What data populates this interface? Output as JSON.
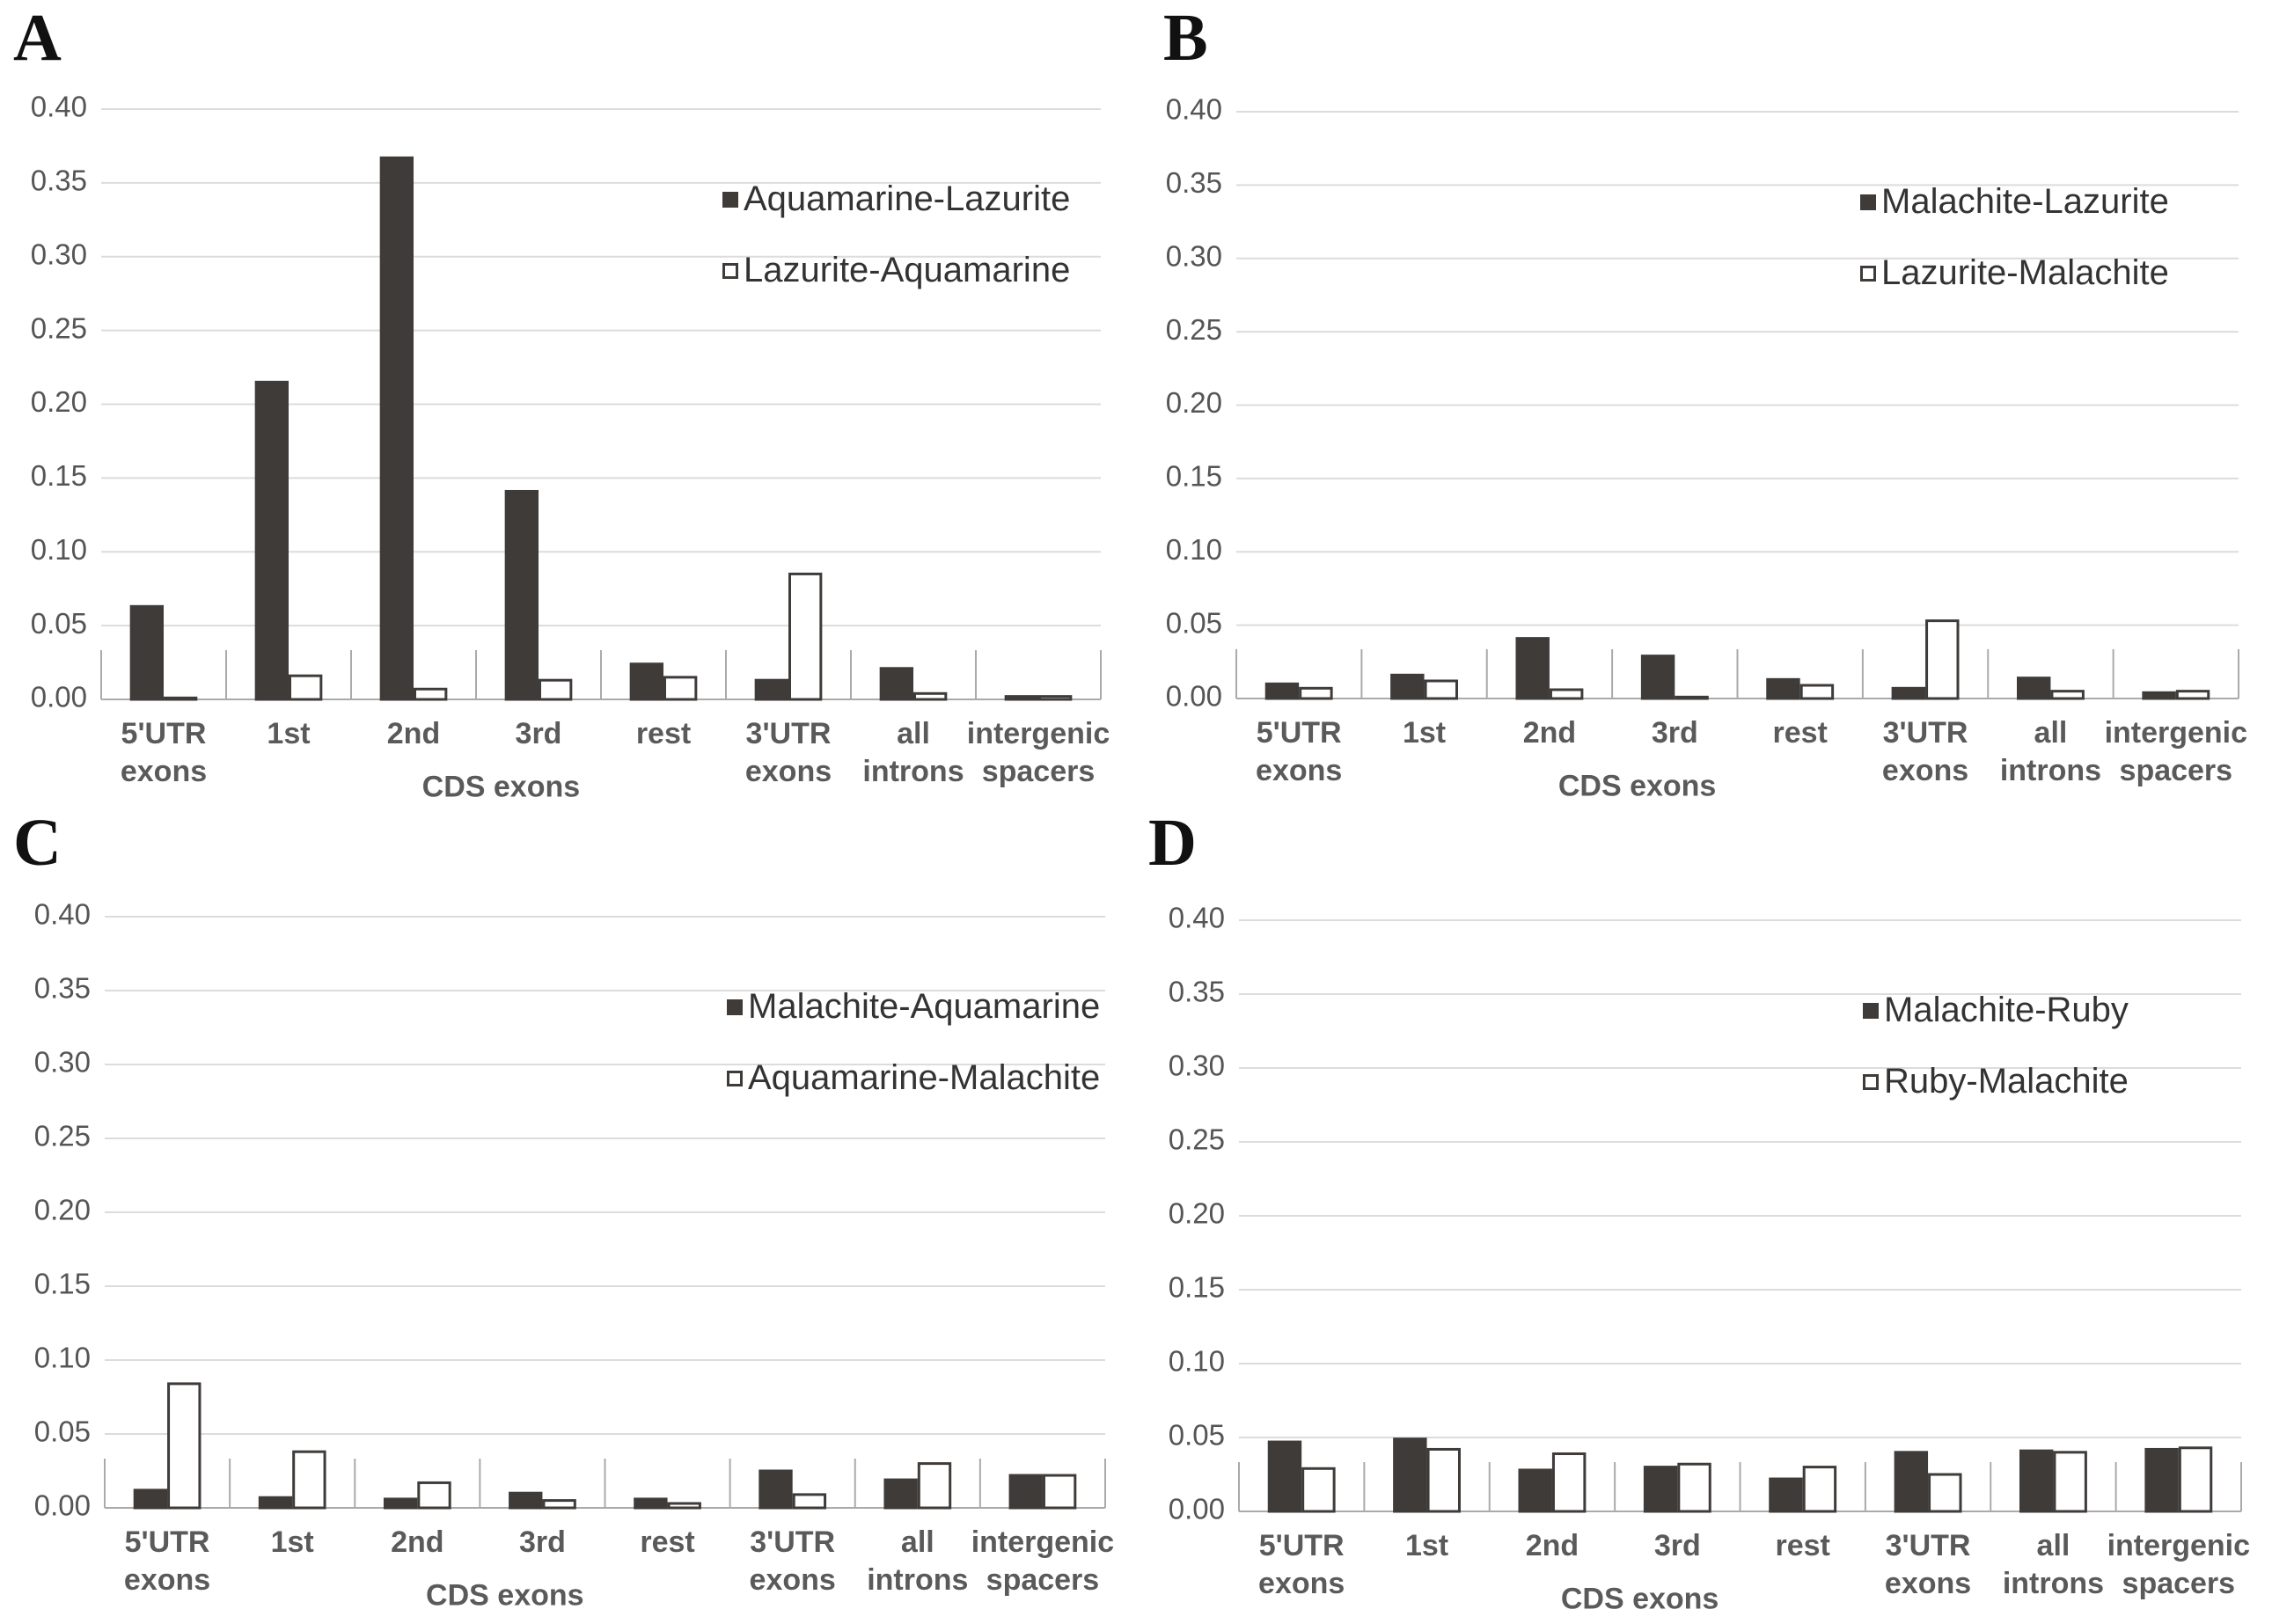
{
  "chart_data": [
    {
      "type": "bar",
      "panel": "A",
      "category_group": "CDS exons",
      "categories": [
        "5'UTR exons",
        "1st",
        "2nd",
        "3rd",
        "rest",
        "3'UTR exons",
        "all introns",
        "intergenic spacers"
      ],
      "series": [
        {
          "name": "Aquamarine-Lazurite",
          "color": "#3f3b39",
          "values": [
            0.063,
            0.215,
            0.367,
            0.141,
            0.024,
            0.013,
            0.021,
            0.002
          ]
        },
        {
          "name": "Lazurite-Aquamarine",
          "color": "#ffffff",
          "values": [
            0.001,
            0.016,
            0.007,
            0.013,
            0.015,
            0.085,
            0.004,
            0.002
          ]
        }
      ],
      "ylim": [
        0,
        0.4
      ],
      "yticks": [
        {
          "value": 0,
          "label": "0.00"
        },
        {
          "value": 0.05,
          "label": "0.05"
        },
        {
          "value": 0.1,
          "label": "0.10"
        },
        {
          "value": 0.15,
          "label": "0.15"
        },
        {
          "value": 0.2,
          "label": "0.20"
        },
        {
          "value": 0.25,
          "label": "0.25"
        },
        {
          "value": 0.3,
          "label": "0.30"
        },
        {
          "value": 0.35,
          "label": "0.35"
        },
        {
          "value": 0.4,
          "label": "0.40"
        }
      ],
      "grid": true,
      "legend": "upper right"
    },
    {
      "type": "bar",
      "panel": "B",
      "category_group": "CDS exons",
      "categories": [
        "5'UTR exons",
        "1st",
        "2nd",
        "3rd",
        "rest",
        "3'UTR exons",
        "all introns",
        "intergenic spacers"
      ],
      "series": [
        {
          "name": "Malachite-Lazurite",
          "color": "#3f3b39",
          "values": [
            0.01,
            0.016,
            0.041,
            0.029,
            0.013,
            0.007,
            0.014,
            0.004
          ]
        },
        {
          "name": "Lazurite-Malachite",
          "color": "#ffffff",
          "values": [
            0.007,
            0.012,
            0.006,
            0.001,
            0.009,
            0.053,
            0.005,
            0.005
          ]
        }
      ],
      "ylim": [
        0,
        0.4
      ],
      "yticks": [
        {
          "value": 0,
          "label": "0.00"
        },
        {
          "value": 0.05,
          "label": "0.05"
        },
        {
          "value": 0.1,
          "label": "0.10"
        },
        {
          "value": 0.15,
          "label": "0.15"
        },
        {
          "value": 0.2,
          "label": "0.20"
        },
        {
          "value": 0.25,
          "label": "0.25"
        },
        {
          "value": 0.3,
          "label": "0.30"
        },
        {
          "value": 0.35,
          "label": "0.35"
        },
        {
          "value": 0.4,
          "label": "0.40"
        }
      ],
      "grid": true,
      "legend": "upper right"
    },
    {
      "type": "bar",
      "panel": "C",
      "category_group": "CDS exons",
      "categories": [
        "5'UTR exons",
        "1st",
        "2nd",
        "3rd",
        "rest",
        "3'UTR exons",
        "all introns",
        "intergenic spacers"
      ],
      "series": [
        {
          "name": "Malachite-Aquamarine",
          "color": "#3f3b39",
          "values": [
            0.012,
            0.007,
            0.006,
            0.01,
            0.006,
            0.025,
            0.019,
            0.022
          ]
        },
        {
          "name": "Aquamarine-Malachite",
          "color": "#ffffff",
          "values": [
            0.084,
            0.038,
            0.017,
            0.005,
            0.003,
            0.009,
            0.03,
            0.022
          ]
        }
      ],
      "ylim": [
        0,
        0.4
      ],
      "yticks": [
        {
          "value": 0,
          "label": "0.00"
        },
        {
          "value": 0.05,
          "label": "0.05"
        },
        {
          "value": 0.1,
          "label": "0.10"
        },
        {
          "value": 0.15,
          "label": "0.15"
        },
        {
          "value": 0.2,
          "label": "0.20"
        },
        {
          "value": 0.25,
          "label": "0.25"
        },
        {
          "value": 0.3,
          "label": "0.30"
        },
        {
          "value": 0.35,
          "label": "0.35"
        },
        {
          "value": 0.4,
          "label": "0.40"
        }
      ],
      "grid": true,
      "legend": "upper right"
    },
    {
      "type": "bar",
      "panel": "D",
      "category_group": "CDS exons",
      "categories": [
        "5'UTR exons",
        "1st",
        "2nd",
        "3rd",
        "rest",
        "3'UTR exons",
        "all introns",
        "intergenic spacers"
      ],
      "series": [
        {
          "name": "Malachite-Ruby",
          "color": "#3f3b39",
          "values": [
            0.047,
            0.049,
            0.028,
            0.03,
            0.022,
            0.04,
            0.041,
            0.042
          ]
        },
        {
          "name": "Ruby-Malachite",
          "color": "#ffffff",
          "values": [
            0.029,
            0.042,
            0.039,
            0.032,
            0.03,
            0.025,
            0.04,
            0.043
          ]
        }
      ],
      "ylim": [
        0,
        0.4
      ],
      "yticks": [
        {
          "value": 0,
          "label": "0.00"
        },
        {
          "value": 0.05,
          "label": "0.05"
        },
        {
          "value": 0.1,
          "label": "0.10"
        },
        {
          "value": 0.15,
          "label": "0.15"
        },
        {
          "value": 0.2,
          "label": "0.20"
        },
        {
          "value": 0.25,
          "label": "0.25"
        },
        {
          "value": 0.3,
          "label": "0.30"
        },
        {
          "value": 0.35,
          "label": "0.35"
        },
        {
          "value": 0.4,
          "label": "0.40"
        }
      ],
      "grid": true,
      "legend": "upper right"
    }
  ]
}
